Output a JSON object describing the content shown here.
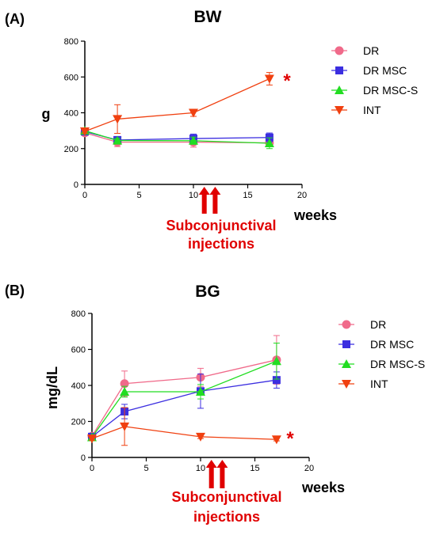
{
  "colors": {
    "DR": "#f06a8a",
    "DR MSC": "#3b2ee0",
    "DR MSC-S": "#22dd22",
    "INT": "#f04010",
    "annotation": "#e00000"
  },
  "chart_data": [
    {
      "type": "line",
      "panel_label": "(A)",
      "title": "BW",
      "ylabel": "g",
      "xlabel": "weeks",
      "xlim": [
        0,
        20
      ],
      "ylim": [
        0,
        800
      ],
      "xticks": [
        "0",
        "5",
        "10",
        "15",
        "20"
      ],
      "yticks": [
        "0",
        "200",
        "400",
        "600",
        "800"
      ],
      "legend_position": "right",
      "annotation": [
        "Subconjunctival",
        "injections"
      ],
      "annotation_arrows_x": [
        11,
        12
      ],
      "significance_mark": "*",
      "series": [
        {
          "name": "DR",
          "marker": "circle",
          "x": [
            0,
            3,
            10,
            17
          ],
          "y": [
            288,
            236,
            236,
            232
          ],
          "err": [
            10,
            25,
            28,
            20
          ]
        },
        {
          "name": "DR MSC",
          "marker": "square",
          "x": [
            0,
            3,
            10,
            17
          ],
          "y": [
            295,
            248,
            256,
            262
          ],
          "err": [
            10,
            15,
            25,
            25
          ]
        },
        {
          "name": "DR MSC-S",
          "marker": "triangle-up",
          "x": [
            0,
            3,
            10,
            17
          ],
          "y": [
            300,
            245,
            244,
            230
          ],
          "err": [
            8,
            12,
            20,
            30
          ]
        },
        {
          "name": "INT",
          "marker": "triangle-down",
          "x": [
            0,
            3,
            10,
            17
          ],
          "y": [
            296,
            365,
            400,
            590
          ],
          "err": [
            10,
            80,
            20,
            35
          ]
        }
      ]
    },
    {
      "type": "line",
      "panel_label": "(B)",
      "title": "BG",
      "ylabel": "mg/dL",
      "xlabel": "weeks",
      "xlim": [
        0,
        20
      ],
      "ylim": [
        0,
        800
      ],
      "xticks": [
        "0",
        "5",
        "10",
        "15",
        "20"
      ],
      "yticks": [
        "0",
        "200",
        "400",
        "600",
        "800"
      ],
      "legend_position": "right",
      "annotation": [
        "Subconjunctival",
        "injections"
      ],
      "annotation_arrows_x": [
        11,
        12
      ],
      "significance_mark": "*",
      "series": [
        {
          "name": "DR",
          "marker": "circle",
          "x": [
            0,
            3,
            10,
            17
          ],
          "y": [
            118,
            410,
            445,
            542
          ],
          "err": [
            10,
            70,
            50,
            135
          ]
        },
        {
          "name": "DR MSC",
          "marker": "square",
          "x": [
            0,
            3,
            10,
            17
          ],
          "y": [
            115,
            255,
            368,
            430
          ],
          "err": [
            10,
            40,
            95,
            45
          ]
        },
        {
          "name": "DR MSC-S",
          "marker": "triangle-up",
          "x": [
            0,
            3,
            10,
            17
          ],
          "y": [
            112,
            365,
            365,
            535
          ],
          "err": [
            10,
            30,
            40,
            100
          ]
        },
        {
          "name": "INT",
          "marker": "triangle-down",
          "x": [
            0,
            3,
            10,
            17
          ],
          "y": [
            105,
            172,
            115,
            100
          ],
          "err": [
            10,
            105,
            10,
            8
          ]
        }
      ]
    }
  ]
}
